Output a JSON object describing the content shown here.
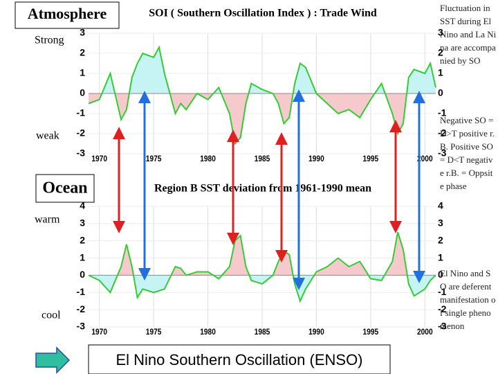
{
  "slide": {
    "atmosphere": "Atmosphere",
    "strong": "Strong",
    "weak": "weak",
    "ocean": "Ocean",
    "warm": "warm",
    "cool": "cool",
    "notes": [
      "Fluctuation in SST during ElNino and La Nina are accompanied by SO",
      "Negative SO = D>T positive r.B. Positive SO = D<T negative r.B. = Oppsite phase",
      "El Nino and SO are deferent manifestation of single phenomenon"
    ],
    "enso": "El Nino Southern Oscillation (ENSO)"
  },
  "chart_data": [
    {
      "type": "area",
      "title": "SOI ( Southern Oscillation Index ) : Trade Wind",
      "x": [
        1969,
        1970,
        1971,
        1972,
        1972.5,
        1973,
        1973.5,
        1974,
        1975,
        1975.5,
        1976,
        1977,
        1977.5,
        1978,
        1979,
        1980,
        1981,
        1982,
        1982.5,
        1983,
        1983.5,
        1984,
        1985,
        1986,
        1986.5,
        1987,
        1987.5,
        1988,
        1988.5,
        1989,
        1990,
        1991,
        1992,
        1993,
        1994,
        1995,
        1996,
        1997,
        1997.5,
        1998,
        1998.5,
        1999,
        2000,
        2000.5,
        2001
      ],
      "values": [
        -0.5,
        -0.3,
        1.0,
        -1.3,
        -0.8,
        0.8,
        1.5,
        2.0,
        1.8,
        2.3,
        1.0,
        -1.0,
        -0.5,
        -0.8,
        0,
        -0.3,
        0.3,
        -1.0,
        -2.5,
        -2.2,
        -0.5,
        0.5,
        0.2,
        0,
        -0.5,
        -1.5,
        -1.2,
        0.5,
        1.5,
        1.3,
        0,
        -0.5,
        -1.0,
        -0.8,
        -1.2,
        -0.3,
        0.5,
        -1.0,
        -2.0,
        -1.5,
        0.8,
        1.2,
        1.0,
        1.5,
        0.3
      ],
      "color": "#33cc33",
      "fill_above": "#c6f3f3",
      "fill_below": "#f6c9cc",
      "xlim": [
        1969,
        2001
      ],
      "xticks": [
        1970,
        1975,
        1980,
        1985,
        1990,
        1995,
        2000
      ],
      "ylim": [
        -3,
        3
      ],
      "yticks": [
        -3,
        -2,
        -1,
        0,
        1,
        2,
        3
      ],
      "grid": true
    },
    {
      "type": "area",
      "title": "Region B SST deviation from 1961-1990 mean",
      "x": [
        1969,
        1970,
        1971,
        1972,
        1972.5,
        1973,
        1973.5,
        1974,
        1975,
        1975.5,
        1976,
        1977,
        1977.5,
        1978,
        1979,
        1980,
        1981,
        1982,
        1982.5,
        1983,
        1983.5,
        1984,
        1985,
        1986,
        1986.5,
        1987,
        1987.5,
        1988,
        1988.5,
        1989,
        1990,
        1991,
        1992,
        1993,
        1994,
        1995,
        1996,
        1997,
        1997.5,
        1998,
        1998.5,
        1999,
        2000,
        2000.5,
        2001
      ],
      "values": [
        0,
        -0.3,
        -1.0,
        0.5,
        1.8,
        0.5,
        -1.3,
        -0.8,
        -1.0,
        -0.9,
        -0.8,
        0.5,
        0.4,
        0,
        0.2,
        0.2,
        -0.2,
        0.5,
        2.0,
        2.3,
        0.5,
        -0.3,
        -0.5,
        0,
        0.8,
        1.4,
        1.2,
        -0.5,
        -1.5,
        -0.8,
        0.2,
        0.5,
        1.0,
        0.5,
        0.8,
        -0.2,
        -0.3,
        0.8,
        2.5,
        1.5,
        -0.5,
        -1.2,
        -0.8,
        -0.3,
        0
      ],
      "color": "#33cc33",
      "fill_above": "#f6c9cc",
      "fill_below": "#c6f3f3",
      "xlim": [
        1969,
        2001
      ],
      "xticks": [
        1970,
        1975,
        1980,
        1985,
        1990,
        1995,
        2000
      ],
      "ylim": [
        -3,
        4
      ],
      "yticks": [
        -3,
        -2,
        -1,
        0,
        1,
        2,
        3,
        4
      ],
      "grid": true
    }
  ]
}
